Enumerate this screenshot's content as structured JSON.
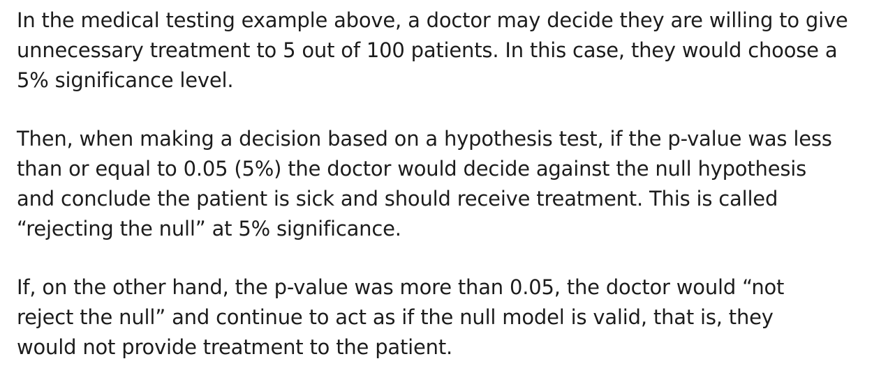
{
  "paragraphs": [
    {
      "lines": [
        "In the medical testing example above, a doctor may decide they are willing to give",
        "unnecessary treatment to 5 out of 100 patients.  In this case, they would choose a",
        "5% significance level."
      ]
    },
    {
      "lines": [
        "Then, when making a decision based on a hypothesis test, if the p-value was less",
        "than or equal to 0.05 (5%) the doctor would decide against the null hypothesis",
        "and conclude the patient is sick and should receive treatment.  This is called",
        "“rejecting the null”  at 5% significance."
      ]
    },
    {
      "lines": [
        "If, on the other hand, the p-value was more than 0.05, the doctor would “not",
        "reject the null” and continue to act as if the null model is valid, that is, they",
        "would not provide treatment to the patient."
      ]
    }
  ]
}
